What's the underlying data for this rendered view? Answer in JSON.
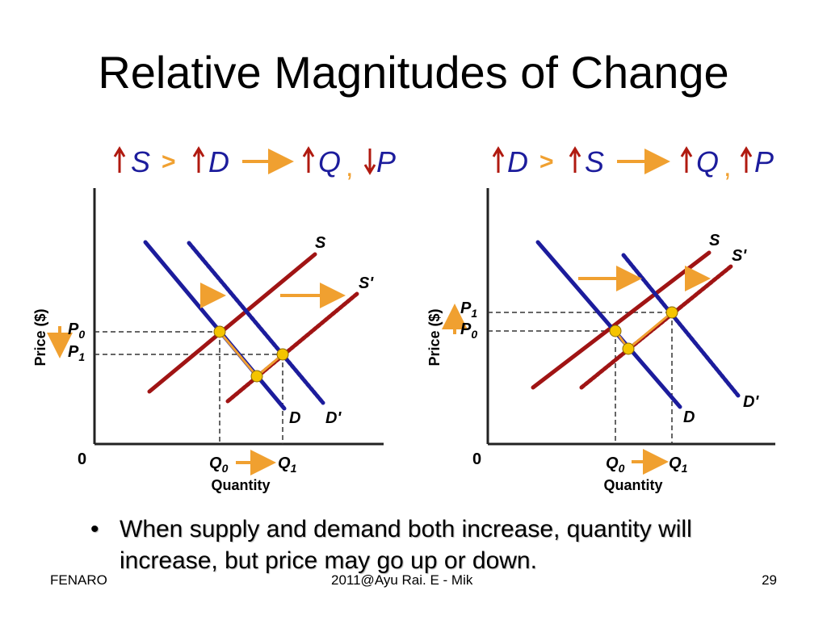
{
  "slide": {
    "title": "Relative Magnitudes of Change",
    "bullet": "When supply and demand both increase, quantity will increase, but price may go up or down.",
    "footer_left": "FENARO",
    "footer_center": "2011@Ayu Rai. E - Mik",
    "footer_right": "29"
  },
  "colors": {
    "supply": "#a01414",
    "demand": "#1c1c9c",
    "arrow": "#f0a030",
    "point": "#f5c400"
  },
  "diagrams": [
    {
      "header": {
        "left": "S",
        "op": ">",
        "right": "D",
        "q": "Q",
        "comma": ",",
        "p": "P",
        "q_dir": "up",
        "p_dir": "down"
      },
      "labels": {
        "s": "S",
        "s_shift": "S'",
        "d": "D",
        "d_shift": "D'",
        "p0": "P",
        "p0_sub": "0",
        "p1": "P",
        "p1_sub": "1",
        "q0": "Q",
        "q0_sub": "0",
        "q1": "Q",
        "q1_sub": "1",
        "origin": "0",
        "xaxis": "Quantity",
        "yaxis": "Price ($)"
      },
      "price_arrow": "down"
    },
    {
      "header": {
        "left": "D",
        "op": ">",
        "right": "S",
        "q": "Q",
        "comma": ",",
        "p": "P",
        "q_dir": "up",
        "p_dir": "up"
      },
      "labels": {
        "s": "S",
        "s_shift": "S'",
        "d": "D",
        "d_shift": "D'",
        "p0": "P",
        "p0_sub": "0",
        "p1": "P",
        "p1_sub": "1",
        "q0": "Q",
        "q0_sub": "0",
        "q1": "Q",
        "q1_sub": "1",
        "origin": "0",
        "xaxis": "Quantity",
        "yaxis": "Price ($)"
      },
      "price_arrow": "up"
    }
  ]
}
